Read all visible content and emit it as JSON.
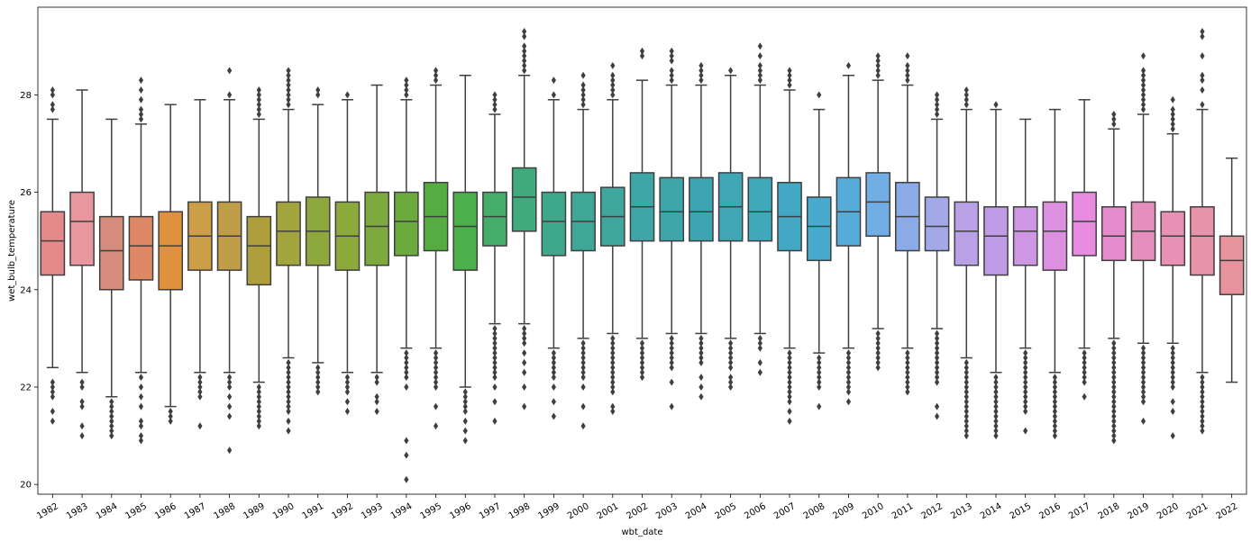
{
  "chart_data": {
    "type": "box",
    "xlabel": "wbt_date",
    "ylabel": "wet_bulb_temperature",
    "ylim": [
      19.8,
      29.8
    ],
    "yticks": [
      20,
      22,
      24,
      26,
      28
    ],
    "grid": false,
    "categories": [
      "1982",
      "1983",
      "1984",
      "1985",
      "1986",
      "1987",
      "1988",
      "1989",
      "1990",
      "1991",
      "1992",
      "1993",
      "1994",
      "1995",
      "1996",
      "1997",
      "1998",
      "1999",
      "2000",
      "2001",
      "2002",
      "2003",
      "2004",
      "2005",
      "2006",
      "2007",
      "2008",
      "2009",
      "2010",
      "2011",
      "2012",
      "2013",
      "2014",
      "2015",
      "2016",
      "2017",
      "2018",
      "2019",
      "2020",
      "2021",
      "2022"
    ],
    "colors": [
      "#e48a8a",
      "#e8979f",
      "#d68b7c",
      "#de8966",
      "#e0913d",
      "#cc9e48",
      "#bf9e47",
      "#ae9f3c",
      "#a2a43d",
      "#8fa83d",
      "#8ca93c",
      "#7ea93e",
      "#6bab3d",
      "#55ad41",
      "#4baf4b",
      "#45ad6a",
      "#41aa7c",
      "#40a88a",
      "#3ea795",
      "#3fa59d",
      "#3ea6a5",
      "#3da6ab",
      "#3da5b1",
      "#3ea7b3",
      "#3fa8b9",
      "#42a8c4",
      "#47aace",
      "#55acd8",
      "#72aee6",
      "#8aaae8",
      "#a3a8e7",
      "#b8a1e6",
      "#c19ce6",
      "#cf97e3",
      "#dc90df",
      "#e78be1",
      "#e68bcd",
      "#e68ebc",
      "#e891b4",
      "#e893aa",
      "#e7939e"
    ],
    "boxes": [
      {
        "q1": 24.3,
        "median": 25.0,
        "q3": 25.6,
        "whislo": 22.4,
        "whishi": 27.5,
        "fliers": [
          21.3,
          21.5,
          21.8,
          21.9,
          22.0,
          22.1,
          27.7,
          27.8,
          28.0,
          28.1
        ]
      },
      {
        "q1": 24.5,
        "median": 25.4,
        "q3": 26.0,
        "whislo": 22.3,
        "whishi": 28.1,
        "fliers": [
          21.0,
          21.2,
          21.6,
          21.7,
          22.0,
          22.1
        ]
      },
      {
        "q1": 24.0,
        "median": 24.8,
        "q3": 25.5,
        "whislo": 21.8,
        "whishi": 27.5,
        "fliers": [
          21.0,
          21.1,
          21.2,
          21.3,
          21.4,
          21.5,
          21.6,
          21.7
        ]
      },
      {
        "q1": 24.2,
        "median": 24.9,
        "q3": 25.5,
        "whislo": 22.3,
        "whishi": 27.4,
        "fliers": [
          20.9,
          21.0,
          21.2,
          21.3,
          21.6,
          21.8,
          22.0,
          22.2,
          27.5,
          27.6,
          27.7,
          27.9,
          28.1,
          28.3
        ]
      },
      {
        "q1": 24.0,
        "median": 24.9,
        "q3": 25.6,
        "whislo": 21.6,
        "whishi": 27.8,
        "fliers": [
          21.3,
          21.4,
          21.5
        ]
      },
      {
        "q1": 24.4,
        "median": 25.1,
        "q3": 25.8,
        "whislo": 22.3,
        "whishi": 27.9,
        "fliers": [
          21.2,
          21.8,
          21.9,
          22.0,
          22.1,
          22.2
        ]
      },
      {
        "q1": 24.4,
        "median": 25.1,
        "q3": 25.8,
        "whislo": 22.3,
        "whishi": 27.9,
        "fliers": [
          20.7,
          21.4,
          21.6,
          21.8,
          22.0,
          22.1,
          22.2,
          28.0,
          28.5
        ]
      },
      {
        "q1": 24.1,
        "median": 24.9,
        "q3": 25.5,
        "whislo": 22.1,
        "whishi": 27.5,
        "fliers": [
          21.2,
          21.3,
          21.4,
          21.5,
          21.6,
          21.7,
          21.8,
          21.9,
          22.0,
          27.6,
          27.7,
          27.8,
          27.9,
          28.0,
          28.1
        ]
      },
      {
        "q1": 24.5,
        "median": 25.2,
        "q3": 25.8,
        "whislo": 22.6,
        "whishi": 27.7,
        "fliers": [
          21.1,
          21.3,
          21.5,
          21.6,
          21.7,
          21.8,
          21.9,
          22.0,
          22.1,
          22.2,
          22.3,
          22.4,
          22.5,
          27.8,
          27.9,
          28.0,
          28.1,
          28.2,
          28.3,
          28.4,
          28.5
        ]
      },
      {
        "q1": 24.5,
        "median": 25.2,
        "q3": 25.9,
        "whislo": 22.5,
        "whishi": 27.8,
        "fliers": [
          21.9,
          22.0,
          22.1,
          22.2,
          22.3,
          22.4,
          28.0,
          28.1
        ]
      },
      {
        "q1": 24.4,
        "median": 25.1,
        "q3": 25.8,
        "whislo": 22.3,
        "whishi": 27.9,
        "fliers": [
          21.5,
          21.7,
          21.9,
          22.0,
          22.1,
          22.2,
          28.0
        ]
      },
      {
        "q1": 24.5,
        "median": 25.3,
        "q3": 26.0,
        "whislo": 22.3,
        "whishi": 28.2,
        "fliers": [
          21.5,
          21.7,
          21.8,
          22.1,
          22.2
        ]
      },
      {
        "q1": 24.7,
        "median": 25.4,
        "q3": 26.0,
        "whislo": 22.8,
        "whishi": 27.9,
        "fliers": [
          20.1,
          20.6,
          20.9,
          22.0,
          22.2,
          22.3,
          22.4,
          22.5,
          22.6,
          22.7,
          28.0,
          28.1,
          28.2,
          28.3
        ]
      },
      {
        "q1": 24.8,
        "median": 25.5,
        "q3": 26.2,
        "whislo": 22.8,
        "whishi": 28.2,
        "fliers": [
          21.2,
          21.6,
          22.0,
          22.1,
          22.2,
          22.3,
          22.4,
          22.5,
          22.6,
          22.7,
          28.3,
          28.4,
          28.5
        ]
      },
      {
        "q1": 24.4,
        "median": 25.3,
        "q3": 26.0,
        "whislo": 22.0,
        "whishi": 28.4,
        "fliers": [
          20.9,
          21.1,
          21.3,
          21.5,
          21.6,
          21.7,
          21.8,
          21.9
        ]
      },
      {
        "q1": 24.9,
        "median": 25.5,
        "q3": 26.0,
        "whislo": 23.3,
        "whishi": 27.6,
        "fliers": [
          21.3,
          21.7,
          22.0,
          22.2,
          22.3,
          22.4,
          22.5,
          22.6,
          22.7,
          22.8,
          22.9,
          23.0,
          23.1,
          23.2,
          27.7,
          27.8,
          27.9,
          28.0
        ]
      },
      {
        "q1": 25.2,
        "median": 25.9,
        "q3": 26.5,
        "whislo": 23.3,
        "whishi": 28.4,
        "fliers": [
          21.6,
          22.0,
          22.3,
          22.5,
          22.7,
          22.9,
          23.0,
          23.1,
          23.2,
          28.5,
          28.6,
          28.7,
          28.8,
          28.9,
          29.0,
          29.2,
          29.3
        ]
      },
      {
        "q1": 24.7,
        "median": 25.4,
        "q3": 26.0,
        "whislo": 22.8,
        "whishi": 27.9,
        "fliers": [
          21.4,
          21.7,
          22.0,
          22.2,
          22.3,
          22.4,
          22.5,
          22.6,
          22.7,
          28.0,
          28.3
        ]
      },
      {
        "q1": 24.8,
        "median": 25.4,
        "q3": 26.0,
        "whislo": 23.0,
        "whishi": 27.7,
        "fliers": [
          21.2,
          21.6,
          22.0,
          22.2,
          22.3,
          22.4,
          22.5,
          22.6,
          22.7,
          22.8,
          22.9,
          27.8,
          27.9,
          28.0,
          28.1,
          28.2,
          28.4
        ]
      },
      {
        "q1": 24.9,
        "median": 25.5,
        "q3": 26.1,
        "whislo": 23.1,
        "whishi": 27.9,
        "fliers": [
          21.5,
          21.6,
          21.9,
          22.0,
          22.1,
          22.2,
          22.3,
          22.4,
          22.5,
          22.6,
          22.7,
          22.8,
          22.9,
          23.0,
          28.0,
          28.1,
          28.2,
          28.3,
          28.4,
          28.6
        ]
      },
      {
        "q1": 25.0,
        "median": 25.7,
        "q3": 26.4,
        "whislo": 23.0,
        "whishi": 28.3,
        "fliers": [
          22.2,
          22.3,
          22.4,
          22.5,
          22.6,
          22.7,
          22.8,
          22.9,
          28.8,
          28.9
        ]
      },
      {
        "q1": 25.0,
        "median": 25.6,
        "q3": 26.3,
        "whislo": 23.1,
        "whishi": 28.2,
        "fliers": [
          21.6,
          22.1,
          22.4,
          22.5,
          22.6,
          22.7,
          22.8,
          22.9,
          23.0,
          28.3,
          28.4,
          28.5,
          28.7,
          28.8,
          28.9
        ]
      },
      {
        "q1": 25.0,
        "median": 25.6,
        "q3": 26.3,
        "whislo": 23.1,
        "whishi": 28.2,
        "fliers": [
          21.8,
          22.0,
          22.2,
          22.5,
          22.6,
          22.7,
          22.8,
          22.9,
          23.0,
          28.3,
          28.4,
          28.5,
          28.6
        ]
      },
      {
        "q1": 25.0,
        "median": 25.7,
        "q3": 26.4,
        "whislo": 23.0,
        "whishi": 28.4,
        "fliers": [
          22.0,
          22.1,
          22.2,
          22.4,
          22.5,
          22.6,
          22.7,
          22.8,
          22.9,
          28.5
        ]
      },
      {
        "q1": 25.0,
        "median": 25.6,
        "q3": 26.3,
        "whislo": 23.1,
        "whishi": 28.2,
        "fliers": [
          22.3,
          22.5,
          22.8,
          22.9,
          23.0,
          28.3,
          28.4,
          28.5,
          28.6,
          28.8,
          29.0
        ]
      },
      {
        "q1": 24.8,
        "median": 25.5,
        "q3": 26.2,
        "whislo": 22.8,
        "whishi": 28.1,
        "fliers": [
          21.3,
          21.5,
          21.7,
          21.8,
          21.9,
          22.0,
          22.1,
          22.2,
          22.3,
          22.4,
          22.5,
          22.6,
          22.7,
          28.2,
          28.3,
          28.4,
          28.5
        ]
      },
      {
        "q1": 24.6,
        "median": 25.3,
        "q3": 25.9,
        "whislo": 22.7,
        "whishi": 27.7,
        "fliers": [
          21.6,
          22.0,
          22.1,
          22.2,
          22.3,
          22.4,
          22.5,
          22.6,
          28.0
        ]
      },
      {
        "q1": 24.9,
        "median": 25.6,
        "q3": 26.3,
        "whislo": 22.8,
        "whishi": 28.4,
        "fliers": [
          21.7,
          21.9,
          22.0,
          22.1,
          22.2,
          22.3,
          22.4,
          22.5,
          22.6,
          22.7,
          28.6
        ]
      },
      {
        "q1": 25.1,
        "median": 25.8,
        "q3": 26.4,
        "whislo": 23.2,
        "whishi": 28.3,
        "fliers": [
          22.4,
          22.5,
          22.6,
          22.7,
          22.8,
          22.9,
          23.0,
          23.1,
          28.4,
          28.5,
          28.6,
          28.7,
          28.8
        ]
      },
      {
        "q1": 24.8,
        "median": 25.5,
        "q3": 26.2,
        "whislo": 22.8,
        "whishi": 28.2,
        "fliers": [
          21.9,
          22.0,
          22.1,
          22.2,
          22.3,
          22.4,
          22.5,
          22.6,
          22.7,
          28.3,
          28.4,
          28.5,
          28.6,
          28.8
        ]
      },
      {
        "q1": 24.8,
        "median": 25.3,
        "q3": 25.9,
        "whislo": 23.2,
        "whishi": 27.5,
        "fliers": [
          21.4,
          21.6,
          22.1,
          22.2,
          22.3,
          22.4,
          22.5,
          22.6,
          22.7,
          22.8,
          22.9,
          23.0,
          23.1,
          27.6,
          27.7,
          27.8,
          27.9,
          28.0
        ]
      },
      {
        "q1": 24.5,
        "median": 25.2,
        "q3": 25.8,
        "whislo": 22.6,
        "whishi": 27.7,
        "fliers": [
          21.0,
          21.1,
          21.2,
          21.3,
          21.4,
          21.5,
          21.6,
          21.7,
          21.8,
          21.9,
          22.0,
          22.1,
          22.2,
          22.3,
          22.4,
          22.5,
          27.8,
          27.9,
          28.0,
          28.1
        ]
      },
      {
        "q1": 24.3,
        "median": 25.1,
        "q3": 25.7,
        "whislo": 22.3,
        "whishi": 27.7,
        "fliers": [
          21.0,
          21.1,
          21.2,
          21.3,
          21.4,
          21.5,
          21.6,
          21.7,
          21.8,
          21.9,
          22.0,
          22.1,
          22.2,
          27.8
        ]
      },
      {
        "q1": 24.5,
        "median": 25.2,
        "q3": 25.7,
        "whislo": 22.8,
        "whishi": 27.5,
        "fliers": [
          21.1,
          21.5,
          21.6,
          21.7,
          21.8,
          21.9,
          22.0,
          22.1,
          22.2,
          22.3,
          22.4,
          22.5,
          22.6,
          22.7
        ]
      },
      {
        "q1": 24.4,
        "median": 25.2,
        "q3": 25.8,
        "whislo": 22.3,
        "whishi": 27.7,
        "fliers": [
          21.0,
          21.1,
          21.2,
          21.3,
          21.4,
          21.5,
          21.6,
          21.7,
          21.8,
          21.9,
          22.0,
          22.1,
          22.2
        ]
      },
      {
        "q1": 24.7,
        "median": 25.4,
        "q3": 26.0,
        "whislo": 22.8,
        "whishi": 27.9,
        "fliers": [
          21.8,
          22.1,
          22.2,
          22.3,
          22.4,
          22.5,
          22.6,
          22.7
        ]
      },
      {
        "q1": 24.6,
        "median": 25.1,
        "q3": 25.7,
        "whislo": 23.0,
        "whishi": 27.3,
        "fliers": [
          20.9,
          21.0,
          21.1,
          21.2,
          21.3,
          21.4,
          21.5,
          21.6,
          21.7,
          21.8,
          21.9,
          22.0,
          22.1,
          22.2,
          22.3,
          22.4,
          22.5,
          22.6,
          22.7,
          22.8,
          22.9,
          27.4,
          27.5,
          27.6
        ]
      },
      {
        "q1": 24.6,
        "median": 25.2,
        "q3": 25.8,
        "whislo": 22.9,
        "whishi": 27.6,
        "fliers": [
          21.3,
          21.7,
          21.8,
          21.9,
          22.0,
          22.1,
          22.2,
          22.3,
          22.4,
          22.5,
          22.6,
          22.7,
          22.8,
          27.7,
          27.8,
          27.9,
          28.0,
          28.1,
          28.2,
          28.3,
          28.4,
          28.5,
          28.8
        ]
      },
      {
        "q1": 24.5,
        "median": 25.1,
        "q3": 25.6,
        "whislo": 22.9,
        "whishi": 27.2,
        "fliers": [
          21.0,
          21.5,
          21.7,
          22.0,
          22.1,
          22.2,
          22.3,
          22.4,
          22.5,
          22.6,
          22.7,
          22.8,
          27.3,
          27.4,
          27.5,
          27.6,
          27.7,
          27.9
        ]
      },
      {
        "q1": 24.3,
        "median": 25.1,
        "q3": 25.7,
        "whislo": 22.3,
        "whishi": 27.7,
        "fliers": [
          21.1,
          21.2,
          21.3,
          21.4,
          21.5,
          21.6,
          21.7,
          21.8,
          21.9,
          22.0,
          22.1,
          22.2,
          27.8,
          28.1,
          28.3,
          28.4,
          28.8,
          29.2,
          29.3
        ]
      },
      {
        "q1": 23.9,
        "median": 24.6,
        "q3": 25.1,
        "whislo": 22.1,
        "whishi": 26.7,
        "fliers": []
      }
    ]
  }
}
